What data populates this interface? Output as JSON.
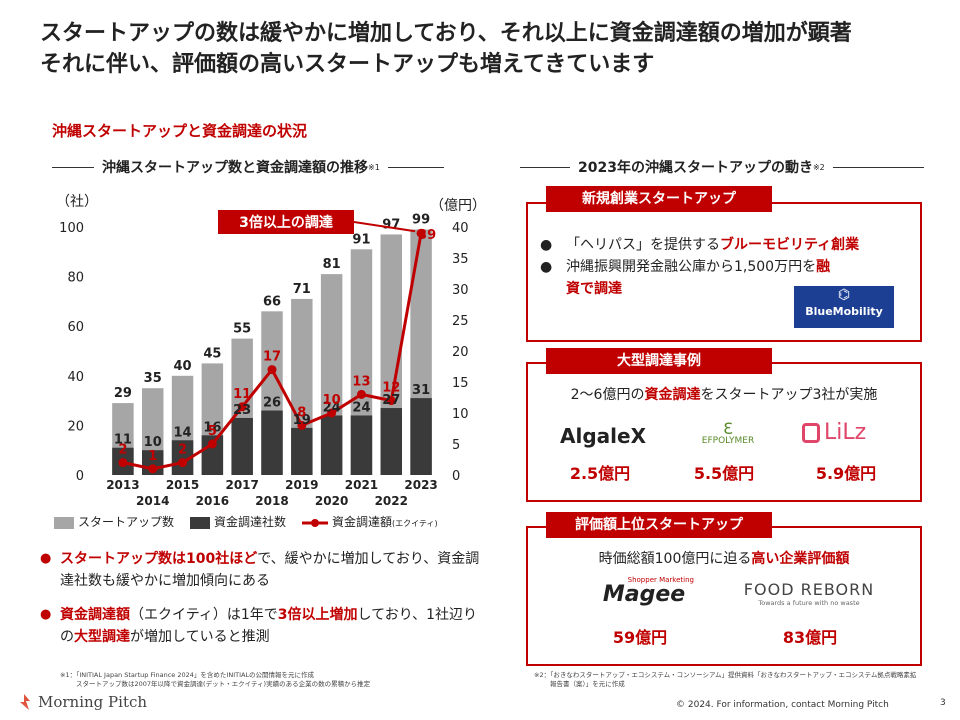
{
  "title_line1": "スタートアップの数は緩やかに増加しており、それ以上に資金調達額の増加が顕著",
  "title_line2": "それに伴い、評価額の高いスタートアップも増えてきています",
  "section_label": "沖縄スタートアップと資金調達の状況",
  "left_heading": "沖縄スタートアップ数と資金調達額の推移",
  "left_heading_note": "※1",
  "right_heading": "2023年の沖縄スタートアップの動き",
  "right_heading_note": "※2",
  "chart_data": {
    "type": "bar",
    "categories": [
      "2013",
      "2014",
      "2015",
      "2016",
      "2017",
      "2018",
      "2019",
      "2020",
      "2021",
      "2022",
      "2023"
    ],
    "y_left_label": "（社）",
    "y_right_label": "（億円）",
    "y_left_ticks": [
      "0",
      "20",
      "40",
      "60",
      "80",
      "100"
    ],
    "y_right_ticks": [
      "0",
      "5",
      "10",
      "15",
      "20",
      "25",
      "30",
      "35",
      "40"
    ],
    "ylim_left": [
      0,
      100
    ],
    "ylim_right": [
      0,
      40
    ],
    "series": [
      {
        "name": "スタートアップ数",
        "type": "bar",
        "axis": "left",
        "color": "#a6a6a6",
        "values": [
          29,
          35,
          40,
          45,
          55,
          66,
          71,
          81,
          91,
          97,
          99
        ]
      },
      {
        "name": "資金調達社数",
        "type": "bar",
        "axis": "left",
        "color": "#3a3a3a",
        "values": [
          11,
          10,
          14,
          16,
          23,
          26,
          19,
          24,
          24,
          27,
          31
        ]
      },
      {
        "name": "資金調達額",
        "name_note": "(エクイティ)",
        "type": "line",
        "axis": "right",
        "color": "#c00000",
        "values": [
          2,
          1,
          2,
          5,
          11,
          17,
          8,
          10,
          13,
          12,
          39
        ]
      }
    ],
    "annotation": "3倍以上の調達"
  },
  "bullets": {
    "b1_red": "スタートアップ数は100社ほど",
    "b1_rest": "で、緩やかに増加しており、資金調達社数も緩やかに増加傾向にある",
    "b2_red1": "資金調達額",
    "b2_mid1": "（エクイティ）は1年で",
    "b2_red2": "3倍以上増加",
    "b2_mid2": "しており、1社辺りの",
    "b2_red3": "大型調達",
    "b2_end": "が増加していると推測"
  },
  "footnote_left_1": "※1：「INITIAL Japan Startup Finance 2024」を含めたINITIALの公開情報を元に作成",
  "footnote_left_2": "スタートアップ数は2007年以降で資金調達(デット・エクイティ)実績のある企業の数の累積から推定",
  "footnote_right_1": "※2：「おきなわスタートアップ・エコシステム・コンソーシアム」提供資料「おきなわスタートアップ・エコシステム拠点戦略素拡",
  "footnote_right_2": "報告書（案）」を元に作成",
  "box1": {
    "head": "新規創業スタートアップ",
    "line1_a": "「ヘリパス」を提供する",
    "line1_red": "ブルーモビリティ創業",
    "line2_a": "沖縄振興開発金融公庫から1,500万円を",
    "line2_red_a": "融",
    "line2_red_b": "資で調達",
    "logo": "BlueMobility"
  },
  "box2": {
    "head": "大型調達事例",
    "lead_a": "2～6億円の",
    "lead_red": "資金調達",
    "lead_b": "をスタートアップ3社が実施",
    "companies": [
      {
        "logo": "AlgaleX",
        "amount": "2.5億円"
      },
      {
        "logo": "EFPOLYMER",
        "amount": "5.5億円"
      },
      {
        "logo": "LiLz",
        "amount": "5.9億円"
      }
    ]
  },
  "box3": {
    "head": "評価額上位スタートアップ",
    "lead_a": "時価総額100億円に迫る",
    "lead_red": "高い企業評価額",
    "companies": [
      {
        "logo": "Magee",
        "logo_small": "Shopper Marketing",
        "amount": "59億円"
      },
      {
        "logo": "FOOD REBORN",
        "logo_small": "Towards a future with no waste",
        "amount": "83億円"
      }
    ]
  },
  "footer_brand": "Morning Pitch",
  "footer_copy": "© 2024. For information, contact Morning Pitch",
  "page_number": "3",
  "colors": {
    "accent": "#c00000",
    "bar_light": "#a6a6a6",
    "bar_dark": "#3a3a3a"
  }
}
